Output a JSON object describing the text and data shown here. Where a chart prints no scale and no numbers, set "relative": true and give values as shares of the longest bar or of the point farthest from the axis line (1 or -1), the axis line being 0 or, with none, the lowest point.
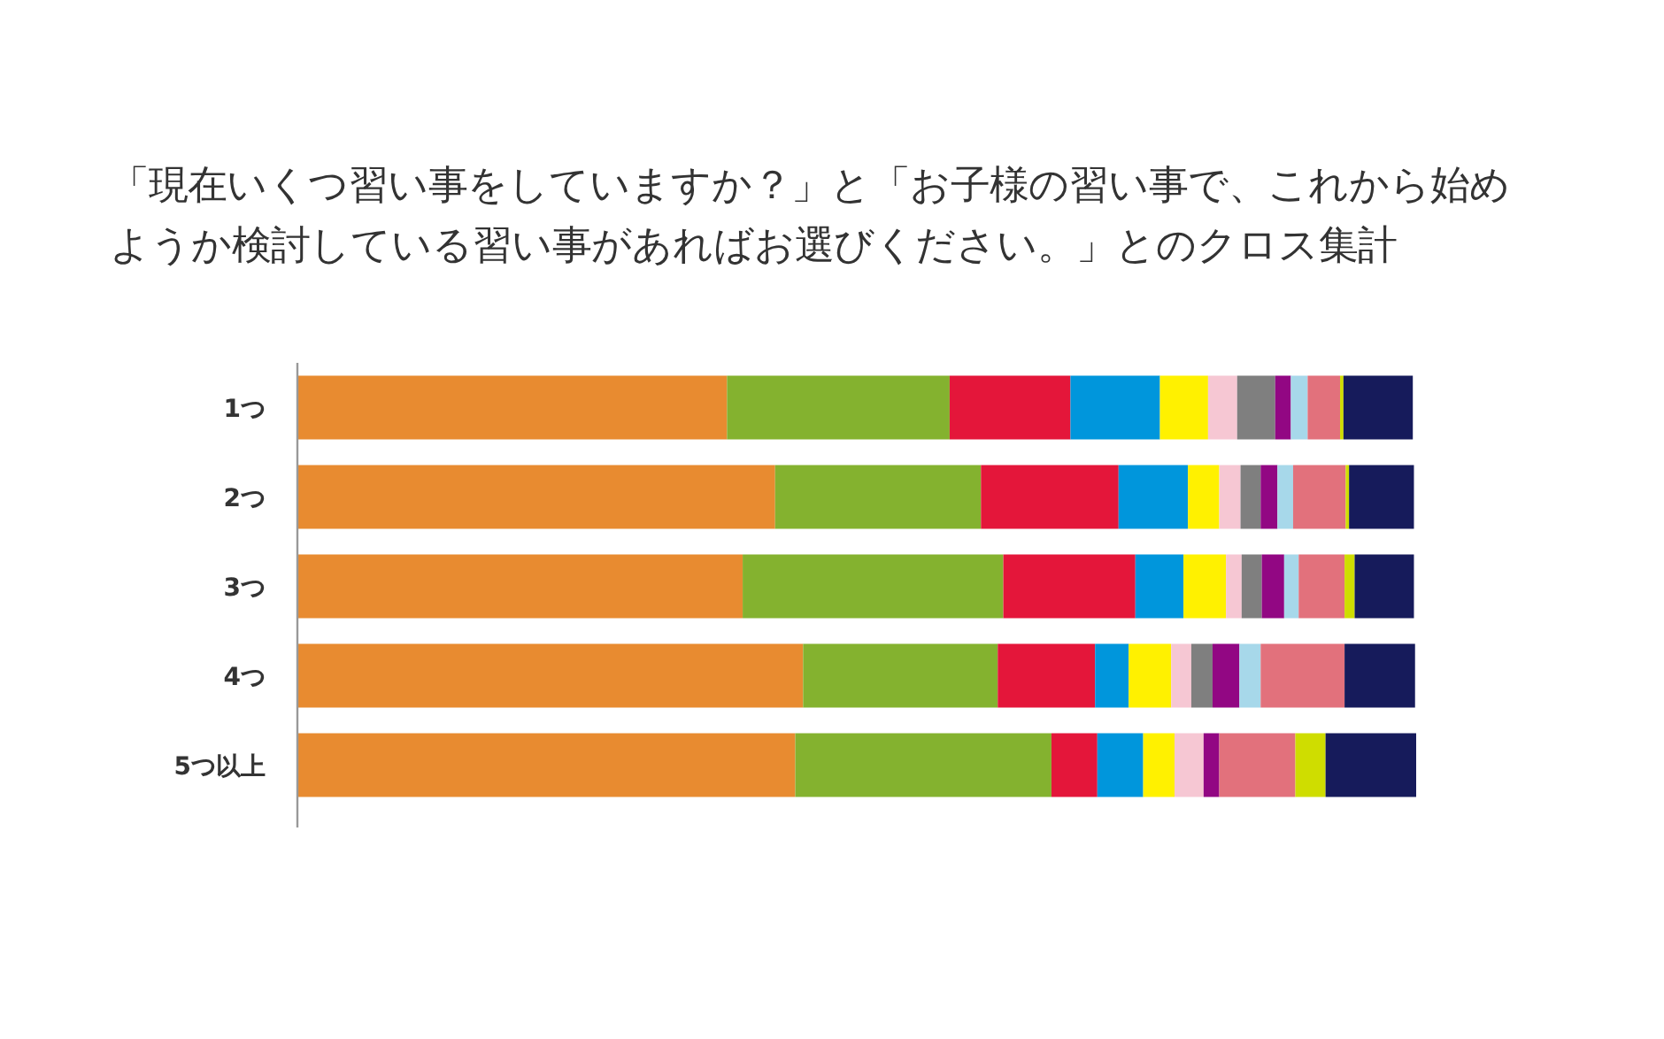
{
  "chart_data": {
    "type": "bar",
    "orientation": "horizontal",
    "stacked": true,
    "relative": true,
    "title": "「現在いくつ習い事をしていますか？」と「お子様の習い事で、これから始めようか検討している習い事があればお選びください。」とのクロス集計",
    "categories": [
      "1つ",
      "2つ",
      "3つ",
      "4つ",
      "5つ以上"
    ],
    "series": [
      {
        "color": "#e88b30",
        "values": [
          0.384,
          0.427,
          0.398,
          0.452,
          0.445
        ]
      },
      {
        "color": "#84b22f",
        "values": [
          0.199,
          0.184,
          0.233,
          0.174,
          0.229
        ]
      },
      {
        "color": "#e4163a",
        "values": [
          0.108,
          0.123,
          0.118,
          0.087,
          0.041
        ]
      },
      {
        "color": "#0096dc",
        "values": [
          0.08,
          0.062,
          0.043,
          0.03,
          0.041
        ]
      },
      {
        "color": "#fff100",
        "values": [
          0.043,
          0.028,
          0.038,
          0.038,
          0.028
        ]
      },
      {
        "color": "#f6c7d3",
        "values": [
          0.026,
          0.019,
          0.014,
          0.018,
          0.026
        ]
      },
      {
        "color": "#7f7f7f",
        "values": [
          0.034,
          0.018,
          0.018,
          0.019,
          0
        ]
      },
      {
        "color": "#920783",
        "values": [
          0.014,
          0.015,
          0.02,
          0.024,
          0.014
        ]
      },
      {
        "color": "#a7d8ea",
        "values": [
          0.015,
          0.014,
          0.013,
          0.019,
          0
        ]
      },
      {
        "color": "#e2717c",
        "values": [
          0.029,
          0.047,
          0.041,
          0.075,
          0.068
        ]
      },
      {
        "color": "#cfdd00",
        "values": [
          0.003,
          0.003,
          0.009,
          0,
          0.027
        ]
      },
      {
        "color": "#161b5b",
        "values": [
          0.062,
          0.058,
          0.053,
          0.063,
          0.081
        ]
      }
    ]
  }
}
